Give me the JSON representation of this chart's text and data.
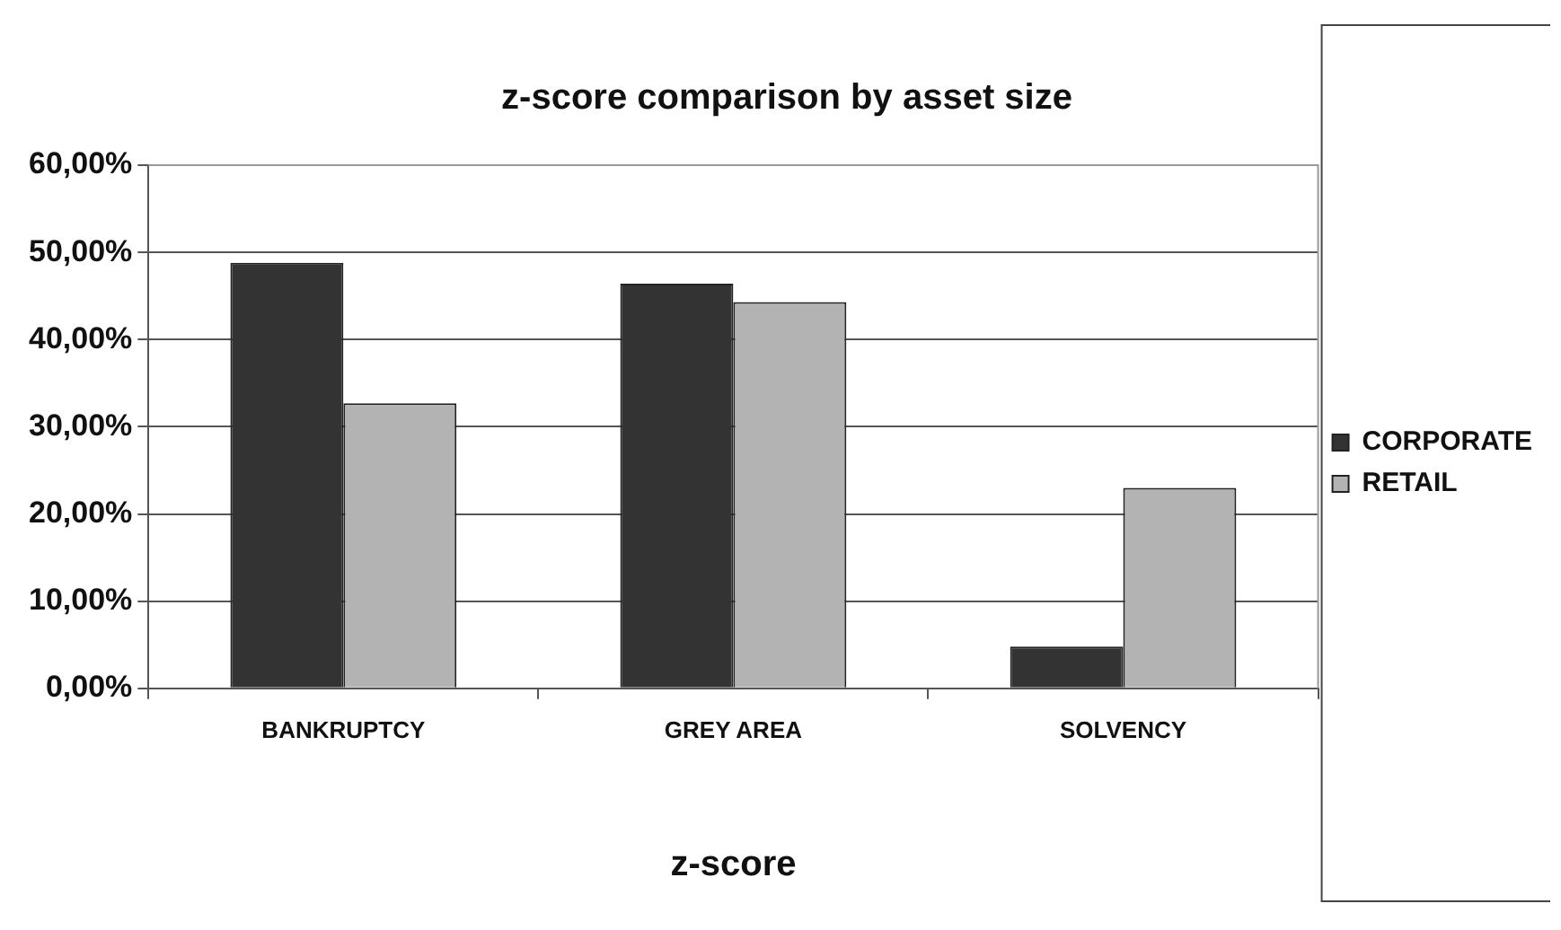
{
  "chart_data": {
    "type": "bar",
    "title": "z-score comparison by asset size",
    "xlabel": "z-score",
    "categories": [
      "BANKRUPTCY",
      "GREY AREA",
      "SOLVENCY"
    ],
    "series": [
      {
        "name": "CORPORATE",
        "color": "#333333",
        "values": [
          48.8,
          46.4,
          4.8
        ]
      },
      {
        "name": "RETAIL",
        "color": "#b3b3b3",
        "values": [
          32.7,
          44.3,
          23.0
        ]
      }
    ],
    "ylim": [
      0,
      60
    ],
    "yticks": [
      {
        "value": 0,
        "label": "0,00%"
      },
      {
        "value": 10,
        "label": "10,00%"
      },
      {
        "value": 20,
        "label": "20,00%"
      },
      {
        "value": 30,
        "label": "30,00%"
      },
      {
        "value": 40,
        "label": "40,00%"
      },
      {
        "value": 50,
        "label": "50,00%"
      },
      {
        "value": 60,
        "label": "60,00%"
      }
    ],
    "grid": "y",
    "legend": "right"
  }
}
